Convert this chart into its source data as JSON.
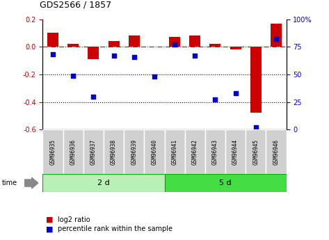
{
  "title": "GDS2566 / 1857",
  "samples": [
    "GSM96935",
    "GSM96936",
    "GSM96937",
    "GSM96938",
    "GSM96939",
    "GSM96940",
    "GSM96941",
    "GSM96942",
    "GSM96943",
    "GSM96944",
    "GSM96945",
    "GSM96946"
  ],
  "log2_ratio": [
    0.1,
    0.02,
    -0.09,
    0.04,
    0.08,
    0.0,
    0.07,
    0.08,
    0.02,
    -0.02,
    -0.48,
    0.17
  ],
  "percentile_rank": [
    68,
    49,
    30,
    67,
    66,
    48,
    77,
    67,
    27,
    33,
    2,
    82
  ],
  "group1_label": "2 d",
  "group2_label": "5 d",
  "group1_count": 6,
  "group2_count": 6,
  "time_label": "time",
  "ylim_left": [
    -0.6,
    0.2
  ],
  "ylim_right": [
    0,
    100
  ],
  "yticks_left": [
    0.2,
    0.0,
    -0.2,
    -0.4,
    -0.6
  ],
  "yticks_right": [
    100,
    75,
    50,
    25,
    0
  ],
  "bar_color": "#cc0000",
  "dot_color": "#0000cc",
  "group1_facecolor": "#b8f0b8",
  "group2_facecolor": "#44dd44",
  "sample_box_color": "#d0d0d0",
  "label_bar": "log2 ratio",
  "label_dot": "percentile rank within the sample",
  "bar_width": 0.55
}
